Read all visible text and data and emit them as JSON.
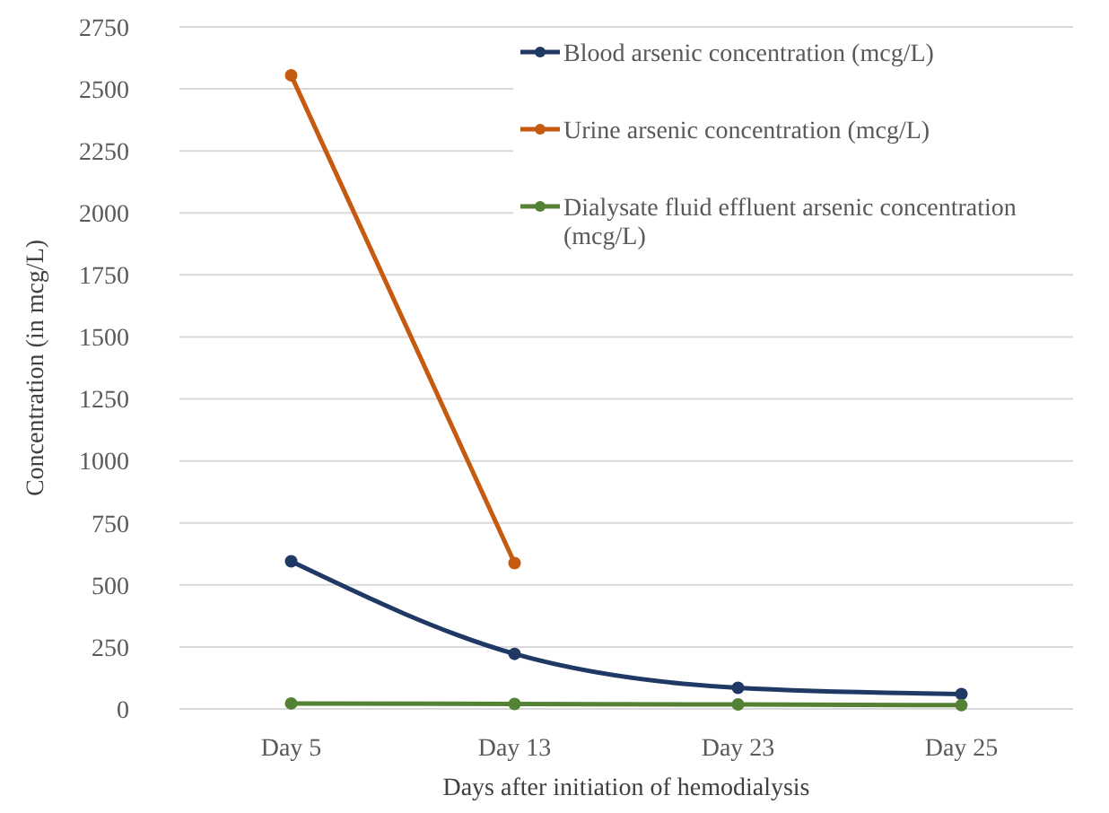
{
  "chart_data": {
    "type": "line",
    "xlabel": "Days after initiation of hemodialysis",
    "ylabel": "Concentration (in mcg/L)",
    "categories": [
      "Day 5",
      "Day 13",
      "Day 23",
      "Day 25"
    ],
    "series": [
      {
        "name": "Blood arsenic concentration (mcg/L)",
        "color": "#1f3864",
        "values": [
          595,
          222,
          85,
          60
        ]
      },
      {
        "name": "Urine arsenic concentration (mcg/L)",
        "color": "#c55a11",
        "values": [
          2555,
          588,
          null,
          null
        ]
      },
      {
        "name": "Dialysate fluid effluent arsenic concentration (mcg/L)",
        "color": "#548235",
        "values": [
          22,
          20,
          18,
          15
        ]
      }
    ],
    "ylim": [
      0,
      2750
    ],
    "yticks": [
      0,
      250,
      500,
      750,
      1000,
      1250,
      1500,
      1750,
      2000,
      2250,
      2500,
      2750
    ],
    "grid": "y",
    "legend": "top right",
    "marker": "circle",
    "line_style": "solid"
  }
}
